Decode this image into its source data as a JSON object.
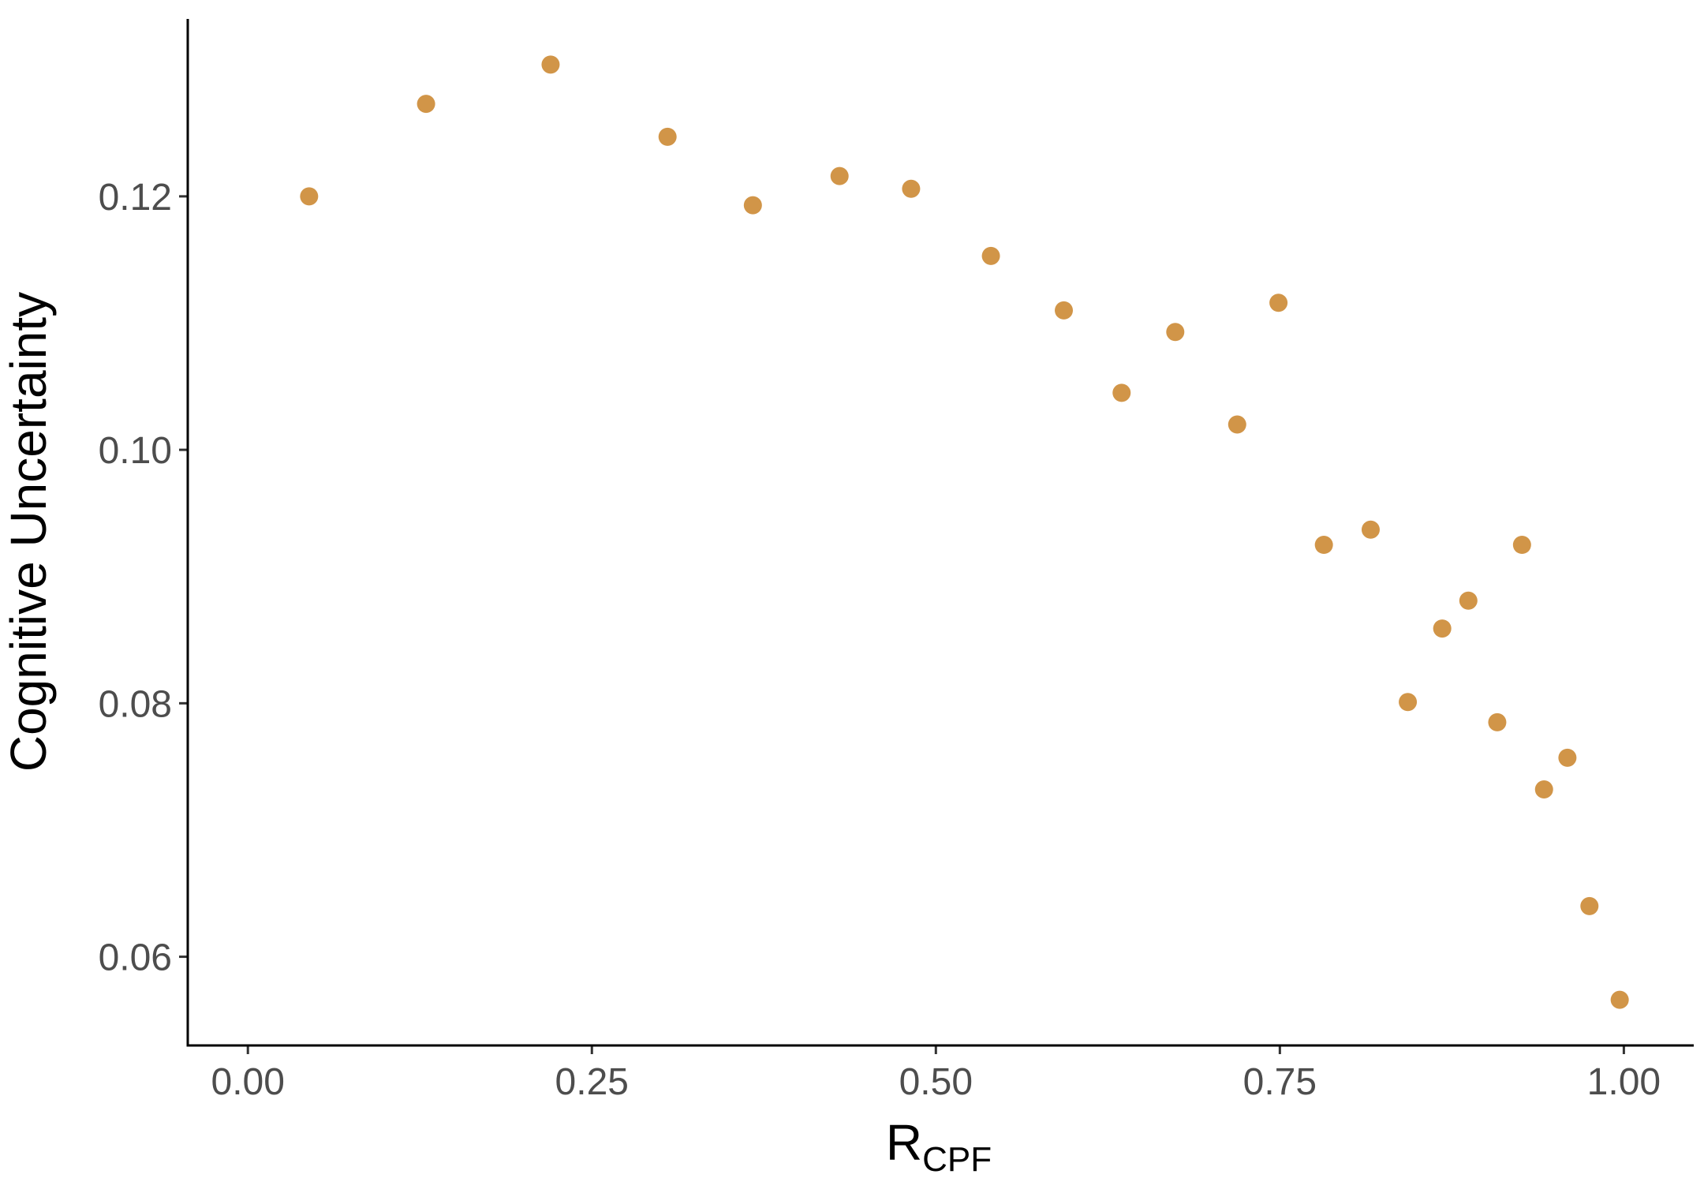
{
  "chart_data": {
    "type": "scatter",
    "x_label": {
      "main": "R",
      "subscript": "CPF"
    },
    "y_label": "Cognitive Uncertainty",
    "color": "#d19548",
    "x": [
      0.0445,
      0.1295,
      0.22,
      0.305,
      0.367,
      0.43,
      0.482,
      0.54,
      0.593,
      0.635,
      0.674,
      0.719,
      0.749,
      0.782,
      0.816,
      0.843,
      0.868,
      0.887,
      0.908,
      0.926,
      0.942,
      0.959,
      0.975,
      0.997
    ],
    "values": [
      0.12,
      0.1273,
      0.1304,
      0.1247,
      0.1193,
      0.1216,
      0.1206,
      0.1153,
      0.111,
      0.1045,
      0.1093,
      0.102,
      0.1116,
      0.0925,
      0.0937,
      0.0801,
      0.0859,
      0.0881,
      0.0785,
      0.0925,
      0.0732,
      0.0757,
      0.064,
      0.0566
    ],
    "xlim": [
      -0.0437,
      1.0508
    ],
    "ylim": [
      0.053,
      0.134
    ],
    "xticks": [
      {
        "value": 0,
        "label": "0.00"
      },
      0.25,
      {
        "value": 0.5,
        "label": "0.50"
      },
      0.75,
      {
        "value": 1,
        "label": "1.00"
      }
    ],
    "yticks": [
      0.06,
      0.08,
      {
        "value": 0.1,
        "label": "0.10"
      },
      0.12
    ]
  }
}
